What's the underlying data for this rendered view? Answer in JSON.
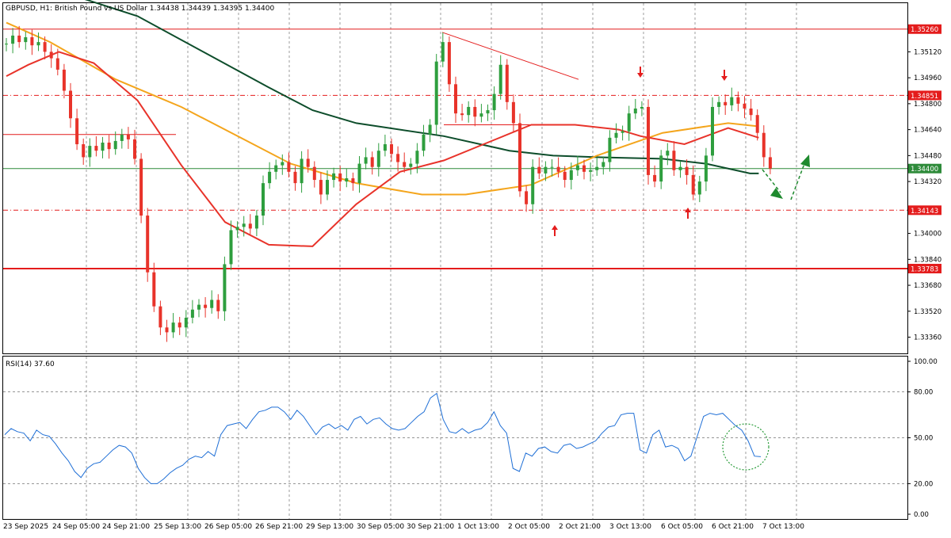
{
  "chart_data": {
    "type": "candlestick",
    "symbol": "GBPUSD",
    "timeframe": "H1",
    "description": "British Pound vs US Dollar",
    "ohlc": {
      "open": "1.34438",
      "high": "1.34439",
      "low": "1.34395",
      "close": "1.34400"
    },
    "header_text": "GBPUSD, H1:  British Pound vs US Dollar  1.34438 1.34439 1.34395 1.34400",
    "price_axis": {
      "min": 1.3326,
      "max": 1.3542,
      "ticks": [
        "1.35120",
        "1.34960",
        "1.34800",
        "1.34640",
        "1.34480",
        "1.34320",
        "1.34000",
        "1.33840",
        "1.33680",
        "1.33520",
        "1.33360"
      ],
      "tick_values": [
        1.3512,
        1.3496,
        1.348,
        1.3464,
        1.3448,
        1.3432,
        1.34,
        1.3384,
        1.3368,
        1.3352,
        1.3336
      ]
    },
    "time_axis": {
      "labels": [
        "23 Sep 2025",
        "24 Sep 05:00",
        "24 Sep 21:00",
        "25 Sep 13:00",
        "26 Sep 05:00",
        "26 Sep 21:00",
        "29 Sep 13:00",
        "30 Sep 05:00",
        "30 Sep 21:00",
        "1 Oct 13:00",
        "2 Oct 05:00",
        "2 Oct 21:00",
        "3 Oct 13:00",
        "6 Oct 05:00",
        "6 Oct 21:00",
        "7 Oct 13:00"
      ]
    },
    "levels": [
      {
        "label": "1.35260",
        "value": 1.3526,
        "style": "solid",
        "color": "#e41c1c"
      },
      {
        "label": "1.34851",
        "value": 1.34851,
        "style": "dashdot",
        "color": "#e41c1c"
      },
      {
        "label": "1.34400",
        "value": 1.344,
        "style": "solid",
        "color": "#2e8b3a"
      },
      {
        "label": "1.34143",
        "value": 1.34143,
        "style": "dashdot",
        "color": "#e41c1c"
      },
      {
        "label": "1.33783",
        "value": 1.33783,
        "style": "solid-thick",
        "color": "#e41c1c"
      }
    ],
    "series": [
      {
        "name": "price",
        "points": [
          [
            0,
            1.3517
          ],
          [
            1,
            1.3522
          ],
          [
            2,
            1.3518
          ],
          [
            3,
            1.3521
          ],
          [
            4,
            1.3516
          ],
          [
            5,
            1.3518
          ],
          [
            6,
            1.3512
          ],
          [
            7,
            1.3508
          ],
          [
            8,
            1.3501
          ],
          [
            9,
            1.3488
          ],
          [
            10,
            1.3471
          ],
          [
            11,
            1.3455
          ],
          [
            12,
            1.3447
          ],
          [
            13,
            1.3454
          ],
          [
            14,
            1.3451
          ],
          [
            15,
            1.3456
          ],
          [
            16,
            1.3452
          ],
          [
            17,
            1.3457
          ],
          [
            18,
            1.3461
          ],
          [
            19,
            1.3458
          ],
          [
            20,
            1.3446
          ],
          [
            21,
            1.3411
          ],
          [
            22,
            1.3376
          ],
          [
            23,
            1.3355
          ],
          [
            24,
            1.3342
          ],
          [
            25,
            1.3339
          ],
          [
            26,
            1.3345
          ],
          [
            27,
            1.3342
          ],
          [
            28,
            1.3348
          ],
          [
            29,
            1.3353
          ],
          [
            30,
            1.3356
          ],
          [
            31,
            1.3354
          ],
          [
            32,
            1.3359
          ],
          [
            33,
            1.3352
          ],
          [
            34,
            1.3381
          ],
          [
            35,
            1.3402
          ],
          [
            36,
            1.3404
          ],
          [
            37,
            1.3406
          ],
          [
            38,
            1.3403
          ],
          [
            39,
            1.3411
          ],
          [
            40,
            1.3431
          ],
          [
            41,
            1.3438
          ],
          [
            42,
            1.3442
          ],
          [
            43,
            1.3444
          ],
          [
            44,
            1.3438
          ],
          [
            45,
            1.3431
          ],
          [
            46,
            1.3446
          ],
          [
            47,
            1.3441
          ],
          [
            48,
            1.3433
          ],
          [
            49,
            1.3424
          ],
          [
            50,
            1.3433
          ],
          [
            51,
            1.3437
          ],
          [
            52,
            1.3432
          ],
          [
            53,
            1.3434
          ],
          [
            54,
            1.3431
          ],
          [
            55,
            1.3443
          ],
          [
            56,
            1.3447
          ],
          [
            57,
            1.3441
          ],
          [
            58,
            1.3451
          ],
          [
            59,
            1.3455
          ],
          [
            60,
            1.3449
          ],
          [
            61,
            1.3444
          ],
          [
            62,
            1.3441
          ],
          [
            63,
            1.3443
          ],
          [
            64,
            1.3451
          ],
          [
            65,
            1.3461
          ],
          [
            66,
            1.3467
          ],
          [
            67,
            1.3506
          ],
          [
            68,
            1.3518
          ],
          [
            69,
            1.3492
          ],
          [
            70,
            1.3474
          ],
          [
            71,
            1.3473
          ],
          [
            72,
            1.3478
          ],
          [
            73,
            1.3472
          ],
          [
            74,
            1.3474
          ],
          [
            75,
            1.3476
          ],
          [
            76,
            1.3486
          ],
          [
            77,
            1.3504
          ],
          [
            78,
            1.3481
          ],
          [
            79,
            1.3468
          ],
          [
            80,
            1.3426
          ],
          [
            81,
            1.3418
          ],
          [
            82,
            1.3441
          ],
          [
            83,
            1.3437
          ],
          [
            84,
            1.3441
          ],
          [
            85,
            1.3441
          ],
          [
            86,
            1.3438
          ],
          [
            87,
            1.3433
          ],
          [
            88,
            1.3439
          ],
          [
            89,
            1.3442
          ],
          [
            90,
            1.3438
          ],
          [
            91,
            1.3439
          ],
          [
            92,
            1.3441
          ],
          [
            93,
            1.3444
          ],
          [
            94,
            1.3459
          ],
          [
            95,
            1.3462
          ],
          [
            96,
            1.3463
          ],
          [
            97,
            1.3474
          ],
          [
            98,
            1.3477
          ],
          [
            99,
            1.3478
          ],
          [
            100,
            1.3436
          ],
          [
            101,
            1.3432
          ],
          [
            102,
            1.3448
          ],
          [
            103,
            1.3451
          ],
          [
            104,
            1.3439
          ],
          [
            105,
            1.3441
          ],
          [
            106,
            1.3436
          ],
          [
            107,
            1.3424
          ],
          [
            108,
            1.3432
          ],
          [
            109,
            1.3448
          ],
          [
            110,
            1.3478
          ],
          [
            111,
            1.3481
          ],
          [
            112,
            1.3479
          ],
          [
            113,
            1.3484
          ],
          [
            114,
            1.348
          ],
          [
            115,
            1.3477
          ],
          [
            116,
            1.3473
          ],
          [
            117,
            1.3462
          ],
          [
            118,
            1.3447
          ],
          [
            119,
            1.344
          ]
        ]
      },
      {
        "name": "MA slow (dark green)",
        "color": "#0d4d2b",
        "points": [
          [
            0,
            1.356
          ],
          [
            30,
            1.3534
          ],
          [
            45,
            1.3512
          ],
          [
            60,
            1.349
          ],
          [
            70,
            1.3476
          ],
          [
            80,
            1.3468
          ],
          [
            100,
            1.346
          ],
          [
            115,
            1.3451
          ],
          [
            125,
            1.3448
          ],
          [
            135,
            1.3447
          ],
          [
            150,
            1.3446
          ],
          [
            160,
            1.3443
          ],
          [
            170,
            1.3437
          ],
          [
            172,
            1.3437
          ]
        ]
      },
      {
        "name": "MA mid (orange)",
        "color": "#f4a51c",
        "points": [
          [
            0,
            1.353
          ],
          [
            5,
            1.3524
          ],
          [
            10,
            1.3518
          ],
          [
            25,
            1.3495
          ],
          [
            40,
            1.3478
          ],
          [
            55,
            1.3457
          ],
          [
            65,
            1.3443
          ],
          [
            80,
            1.3431
          ],
          [
            95,
            1.3424
          ],
          [
            105,
            1.3424
          ],
          [
            120,
            1.343
          ],
          [
            135,
            1.3448
          ],
          [
            150,
            1.3462
          ],
          [
            165,
            1.3468
          ],
          [
            172,
            1.3466
          ]
        ]
      },
      {
        "name": "MA fast (red)",
        "color": "#e8332a",
        "points": [
          [
            0,
            1.3497
          ],
          [
            5,
            1.3504
          ],
          [
            12,
            1.3512
          ],
          [
            20,
            1.3505
          ],
          [
            30,
            1.3482
          ],
          [
            40,
            1.3442
          ],
          [
            50,
            1.3407
          ],
          [
            60,
            1.3393
          ],
          [
            70,
            1.3392
          ],
          [
            80,
            1.3418
          ],
          [
            90,
            1.3438
          ],
          [
            100,
            1.3445
          ],
          [
            110,
            1.3456
          ],
          [
            120,
            1.3467
          ],
          [
            130,
            1.3467
          ],
          [
            140,
            1.3464
          ],
          [
            145,
            1.346
          ],
          [
            155,
            1.3455
          ],
          [
            165,
            1.3465
          ],
          [
            172,
            1.3459
          ]
        ]
      }
    ],
    "rsi": {
      "label": "RSI(14) 37.60",
      "ymin": 0,
      "ymax": 100,
      "ticks": [
        "100.00",
        "80.00",
        "50.00",
        "20.00",
        "0.00"
      ],
      "tick_values": [
        100,
        80,
        50,
        20,
        0
      ],
      "values": [
        52,
        56,
        54,
        53,
        48,
        55,
        52,
        51,
        46,
        40,
        35,
        28,
        24,
        30,
        33,
        34,
        38,
        42,
        45,
        44,
        40,
        30,
        24,
        20,
        20,
        23,
        27,
        30,
        32,
        36,
        38,
        37,
        41,
        38,
        52,
        58,
        59,
        60,
        56,
        62,
        67,
        68,
        70,
        70,
        67,
        62,
        68,
        64,
        58,
        52,
        57,
        59,
        56,
        58,
        55,
        62,
        64,
        59,
        62,
        63,
        59,
        56,
        55,
        56,
        60,
        64,
        67,
        76,
        79,
        62,
        54,
        53,
        56,
        53,
        55,
        56,
        60,
        67,
        58,
        53,
        30,
        28,
        40,
        38,
        43,
        44,
        41,
        40,
        45,
        46,
        43,
        44,
        46,
        48,
        53,
        57,
        58,
        65,
        66,
        66,
        42,
        40,
        52,
        55,
        44,
        45,
        43,
        35,
        38,
        51,
        64,
        66,
        65,
        66,
        62,
        58,
        55,
        48,
        38,
        37.6
      ]
    }
  }
}
